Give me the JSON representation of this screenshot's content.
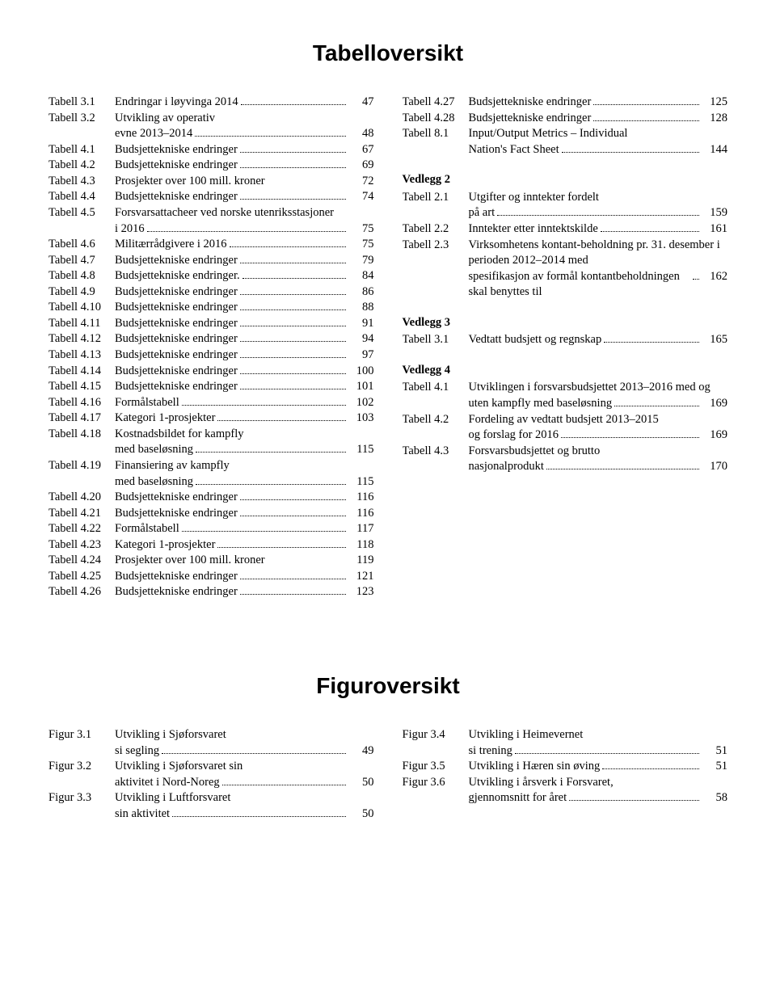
{
  "headings": {
    "tabell": "Tabelloversikt",
    "figur": "Figuroversikt"
  },
  "tabell_left": [
    {
      "label": "Tabell 3.1",
      "desc": "Endringar i løyvinga 2014",
      "page": "47"
    },
    {
      "label": "Tabell 3.2",
      "desc": "Utvikling av operativ evne 2013–2014",
      "page": "48",
      "multi": true
    },
    {
      "label": "Tabell 4.1",
      "desc": "Budsjettekniske endringer",
      "page": "67"
    },
    {
      "label": "Tabell 4.2",
      "desc": "Budsjettekniske endringer",
      "page": "69"
    },
    {
      "label": "Tabell 4.3",
      "desc": "Prosjekter over 100 mill. kroner",
      "page": "72",
      "noleader": true
    },
    {
      "label": "Tabell 4.4",
      "desc": "Budsjettekniske endringer",
      "page": "74"
    },
    {
      "label": "Tabell 4.5",
      "desc": "Forsvarsattacheer ved norske utenriksstasjoner i 2016",
      "page": "75",
      "multi": true
    },
    {
      "label": "Tabell 4.6",
      "desc": "Militærrådgivere i 2016",
      "page": "75"
    },
    {
      "label": "Tabell 4.7",
      "desc": "Budsjettekniske endringer",
      "page": "79"
    },
    {
      "label": "Tabell 4.8",
      "desc": "Budsjettekniske endringer.",
      "page": "84"
    },
    {
      "label": "Tabell 4.9",
      "desc": "Budsjettekniske endringer",
      "page": "86"
    },
    {
      "label": "Tabell 4.10",
      "desc": "Budsjettekniske endringer",
      "page": "88"
    },
    {
      "label": "Tabell 4.11",
      "desc": "Budsjettekniske endringer",
      "page": "91"
    },
    {
      "label": "Tabell 4.12",
      "desc": "Budsjettekniske endringer",
      "page": "94"
    },
    {
      "label": "Tabell 4.13",
      "desc": "Budsjettekniske endringer",
      "page": "97"
    },
    {
      "label": "Tabell 4.14",
      "desc": "Budsjettekniske endringer",
      "page": "100"
    },
    {
      "label": "Tabell 4.15",
      "desc": "Budsjettekniske endringer",
      "page": "101"
    },
    {
      "label": "Tabell 4.16",
      "desc": "Formålstabell",
      "page": "102"
    },
    {
      "label": "Tabell 4.17",
      "desc": "Kategori 1-prosjekter",
      "page": "103"
    },
    {
      "label": "Tabell 4.18",
      "desc": "Kostnadsbildet for kampfly med baseløsning",
      "page": "115",
      "multi": true
    },
    {
      "label": "Tabell 4.19",
      "desc": "Finansiering av kampfly med baseløsning",
      "page": "115",
      "multi": true
    },
    {
      "label": "Tabell 4.20",
      "desc": "Budsjettekniske endringer",
      "page": "116"
    },
    {
      "label": "Tabell 4.21",
      "desc": "Budsjettekniske endringer",
      "page": "116"
    },
    {
      "label": "Tabell 4.22",
      "desc": "Formålstabell",
      "page": "117"
    },
    {
      "label": "Tabell 4.23",
      "desc": "Kategori 1-prosjekter",
      "page": "118"
    },
    {
      "label": "Tabell 4.24",
      "desc": "Prosjekter over 100 mill. kroner",
      "page": "119",
      "noleader": true
    },
    {
      "label": "Tabell 4.25",
      "desc": "Budsjettekniske endringer",
      "page": "121"
    },
    {
      "label": "Tabell 4.26",
      "desc": "Budsjettekniske endringer",
      "page": "123"
    }
  ],
  "tabell_right": [
    {
      "label": "Tabell 4.27",
      "desc": "Budsjettekniske endringer",
      "page": "125"
    },
    {
      "label": "Tabell 4.28",
      "desc": "Budsjettekniske endringer",
      "page": "128"
    },
    {
      "label": "Tabell 8.1",
      "desc": "Input/Output Metrics – Individual Nation's Fact Sheet",
      "page": "144",
      "multi": true
    }
  ],
  "vedlegg2_head": "Vedlegg 2",
  "vedlegg2": [
    {
      "label": "Tabell 2.1",
      "desc": "Utgifter og inntekter fordelt på art",
      "page": "159",
      "multi": true
    },
    {
      "label": "Tabell 2.2",
      "desc": "Inntekter etter inntektskilde",
      "page": "161"
    },
    {
      "label": "Tabell 2.3",
      "desc": "Virksomhetens kontant-beholdning pr. 31. desember i perioden 2012–2014 med spesifikasjon av formål kontantbeholdningen skal benyttes til",
      "page": "162",
      "multi": true
    }
  ],
  "vedlegg3_head": "Vedlegg 3",
  "vedlegg3": [
    {
      "label": "Tabell 3.1",
      "desc": "Vedtatt budsjett og regnskap",
      "page": "165"
    }
  ],
  "vedlegg4_head": "Vedlegg 4",
  "vedlegg4": [
    {
      "label": "Tabell 4.1",
      "desc": "Utviklingen i forsvarsbudsjettet 2013–2016 med og uten kampfly med baseløsning",
      "page": "169",
      "multi": true
    },
    {
      "label": "Tabell 4.2",
      "desc": "Fordeling av vedtatt budsjett 2013–2015 og forslag for 2016",
      "page": "169",
      "multi": true
    },
    {
      "label": "Tabell 4.3",
      "desc": "Forsvarsbudsjettet og brutto nasjonalprodukt",
      "page": "170",
      "multi": true
    }
  ],
  "figur_left": [
    {
      "label": "Figur 3.1",
      "desc": "Utvikling i Sjøforsvaret si segling",
      "page": "49",
      "multi": true
    },
    {
      "label": "Figur 3.2",
      "desc": "Utvikling i Sjøforsvaret sin aktivitet i Nord-Noreg",
      "page": "50",
      "multi": true
    },
    {
      "label": "Figur 3.3",
      "desc": "Utvikling i Luftforsvaret sin aktivitet",
      "page": "50",
      "multi": true
    }
  ],
  "figur_right": [
    {
      "label": "Figur 3.4",
      "desc": "Utvikling i Heimevernet si trening",
      "page": "51",
      "multi": true
    },
    {
      "label": "Figur 3.5",
      "desc": "Utvikling i Hæren sin øving",
      "page": "51"
    },
    {
      "label": "Figur 3.6",
      "desc": "Utvikling i årsverk i Forsvaret, gjennomsnitt for året",
      "page": "58",
      "multi": true
    }
  ]
}
